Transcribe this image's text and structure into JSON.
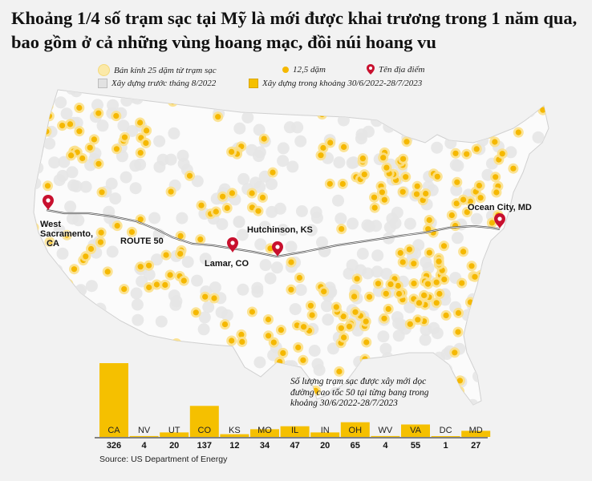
{
  "title": "Khoảng 1/4 số trạm sạc tại Mỹ là mới được khai trương trong 1 năm qua, bao gồm ở cả những vùng hoang mạc, đồi núi hoang vu",
  "legend": {
    "radius": "Bán kính 25 dặm từ trạm sạc",
    "dot": "12,5 dặm",
    "pin": "Tên địa điểm",
    "before": "Xây dựng trước tháng 8/2022",
    "during": "Xây dựng trong khoảng 30/6/2022-28/7/2023"
  },
  "map": {
    "route_label": "ROUTE 50",
    "places": [
      {
        "id": "west-sacramento",
        "lines": [
          "West",
          "Sacramento,",
          "CA"
        ]
      },
      {
        "id": "lamar",
        "lines": [
          "Lamar, CO"
        ]
      },
      {
        "id": "hutchinson",
        "lines": [
          "Hutchinson, KS"
        ]
      },
      {
        "id": "ocean-city",
        "lines": [
          "Ocean City, MD"
        ]
      }
    ]
  },
  "chart_data": {
    "type": "bar",
    "title": "Số lượng trạm sạc được xây mới dọc đường cao tốc 50 tại từng bang trong khoảng 30/6/2022-28/7/2023",
    "categories": [
      "CA",
      "NV",
      "UT",
      "CO",
      "KS",
      "MO",
      "IL",
      "IN",
      "OH",
      "WV",
      "VA",
      "DC",
      "MD"
    ],
    "values": [
      326,
      4,
      20,
      137,
      12,
      34,
      47,
      20,
      65,
      4,
      55,
      1,
      27
    ],
    "ylim": [
      0,
      326
    ],
    "grid": false,
    "legend": "none",
    "bar_color": "#f5c000"
  },
  "source": "Source: US Department of Energy",
  "colors": {
    "background": "#f2f2f2",
    "old_station": "#e4e4e4",
    "new_station": "#f5b800",
    "route": "#555555",
    "pin": "#c8102e"
  }
}
